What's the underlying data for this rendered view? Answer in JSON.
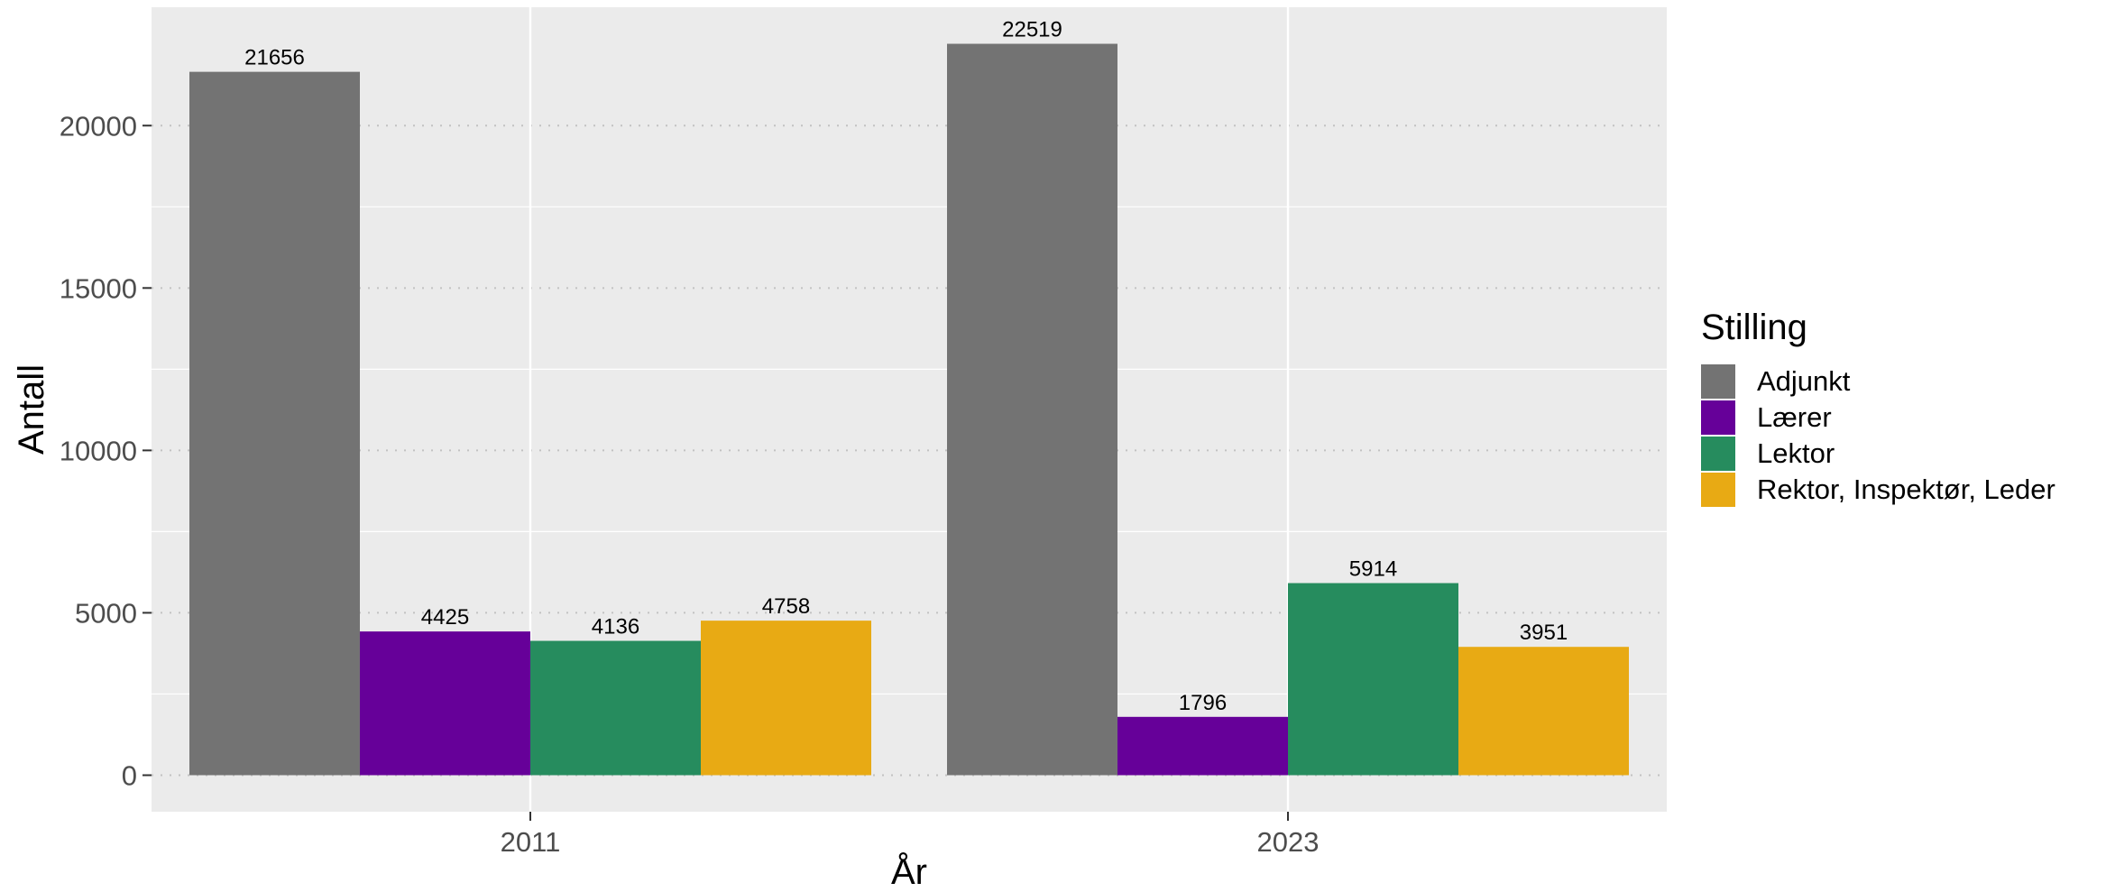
{
  "chart_data": {
    "type": "bar",
    "categories": [
      "2011",
      "2023"
    ],
    "series": [
      {
        "name": "Adjunkt",
        "values": [
          21656,
          22519
        ],
        "color": "#737373"
      },
      {
        "name": "Lærer",
        "values": [
          4425,
          1796
        ],
        "color": "#660099"
      },
      {
        "name": "Lektor",
        "values": [
          4136,
          5914
        ],
        "color": "#268C5E"
      },
      {
        "name": "Rektor, Inspektør, Leder",
        "values": [
          4758,
          3951
        ],
        "color": "#E8AA14"
      }
    ],
    "data_labels": [
      [
        "21656",
        "22519"
      ],
      [
        "4425",
        "1796"
      ],
      [
        "4136",
        "5914"
      ],
      [
        "4758",
        "3951"
      ]
    ],
    "xlabel": "År",
    "ylabel": "Antall",
    "yticks": [
      0,
      5000,
      10000,
      15000,
      20000
    ],
    "ytick_labels": [
      "0",
      "5000",
      "10000",
      "15000",
      "20000"
    ],
    "ylim": [
      -1125,
      23645
    ],
    "legend": {
      "title": "Stilling",
      "position": "right"
    },
    "grid": true,
    "panel_background": "#EBEBEB"
  }
}
